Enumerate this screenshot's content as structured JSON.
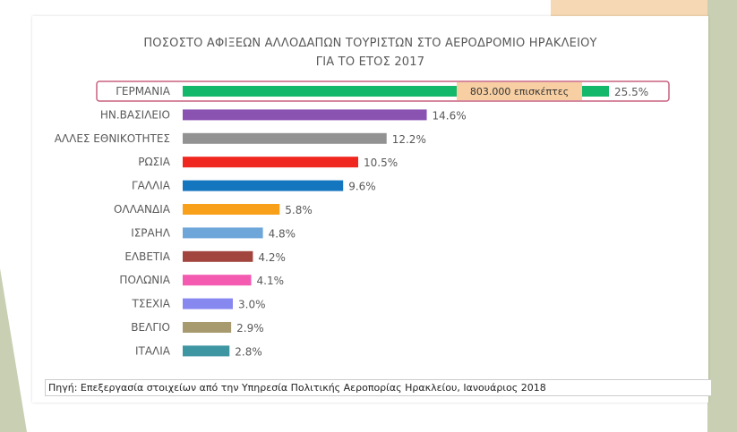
{
  "chart_data": {
    "type": "bar",
    "orientation": "horizontal",
    "title": "ΠΟΣΟΣΤΟ ΑΦΙΞΕΩΝ ΑΛΛΟΔΑΠΩΝ ΤΟΥΡΙΣΤΩΝ  ΣΤΟ ΑΕΡΟΔΡΟΜΙΟ ΗΡΑΚΛΕΙΟΥ",
    "subtitle": "ΓΙΑ ΤΟ ΕΤΟΣ 2017",
    "categories": [
      "ΓΕΡΜΑΝΙΑ",
      "ΗΝ.ΒΑΣΙΛΕΙΟ",
      "ΑΛΛΕΣ ΕΘΝΙΚΟΤΗΤΕΣ",
      "ΡΩΣΙΑ",
      "ΓΑΛΛΙΑ",
      "ΟΛΛΑΝΔΙΑ",
      "ΙΣΡΑΗΛ",
      "ΕΛΒΕΤΙΑ",
      "ΠΟΛΩΝΙΑ",
      "ΤΣΕΧΙΑ",
      "ΒΕΛΓΙΟ",
      "ΙΤΑΛΙΑ"
    ],
    "values": [
      25.5,
      14.6,
      12.2,
      10.5,
      9.6,
      5.8,
      4.8,
      4.2,
      4.1,
      3.0,
      2.9,
      2.8
    ],
    "value_labels": [
      "25.5%",
      "14.6%",
      "12.2%",
      "10.5%",
      "9.6%",
      "5.8%",
      "4.8%",
      "4.2%",
      "4.1%",
      "3.0%",
      "2.9%",
      "2.8%"
    ],
    "colors": [
      "#13b86a",
      "#8a52b1",
      "#929292",
      "#f0271e",
      "#1576c0",
      "#f8a019",
      "#6ea6da",
      "#a2453e",
      "#f35ab0",
      "#8787f0",
      "#a79a6e",
      "#3e96a3"
    ],
    "xlim": [
      0,
      26
    ],
    "grid": false,
    "legend": "none",
    "annotation": {
      "text": "803.000 επισκέπτες",
      "category": "ΓΕΡΜΑΝΙΑ",
      "fill": "#f8cfa3",
      "highlight_border": "#c9607e"
    }
  },
  "source": "Πηγή: Επεξεργασία στοιχείων από την Υπηρεσία Πολιτικής Αεροπορίας Ηρακλείου, Ιανουάριος 2018"
}
